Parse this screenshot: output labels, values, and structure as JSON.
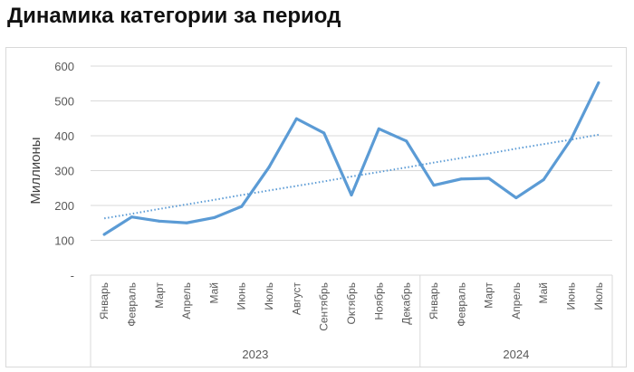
{
  "title": "Динамика категории за период",
  "chart_data": {
    "type": "line",
    "title": "Динамика категории за период",
    "xlabel": "",
    "ylabel": "Миллионы",
    "ylim": [
      0,
      600
    ],
    "yticks": [
      "-",
      "100",
      "200",
      "300",
      "400",
      "500",
      "600"
    ],
    "grid": true,
    "legend": "none",
    "groups": [
      {
        "label": "2023",
        "categories": [
          "Январь",
          "Февраль",
          "Март",
          "Апрель",
          "Май",
          "Июнь",
          "Июль",
          "Август",
          "Сентябрь",
          "Октябрь",
          "Ноябрь",
          "Декабрь"
        ]
      },
      {
        "label": "2024",
        "categories": [
          "Январь",
          "Февраль",
          "Март",
          "Апрель",
          "Май",
          "Июнь",
          "Июль"
        ]
      }
    ],
    "series": [
      {
        "values": [
          117,
          167,
          155,
          150,
          165,
          197,
          310,
          449,
          408,
          230,
          420,
          385,
          258,
          276,
          278,
          222,
          274,
          390,
          552
        ],
        "color": "#5b9bd5",
        "style": "solid"
      },
      {
        "trendline": "linear",
        "values": [
          163,
          176,
          190,
          203,
          216,
          230,
          243,
          256,
          269,
          283,
          296,
          309,
          323,
          336,
          349,
          363,
          376,
          389,
          403
        ],
        "color": "#5b9bd5",
        "style": "dotted"
      }
    ]
  }
}
